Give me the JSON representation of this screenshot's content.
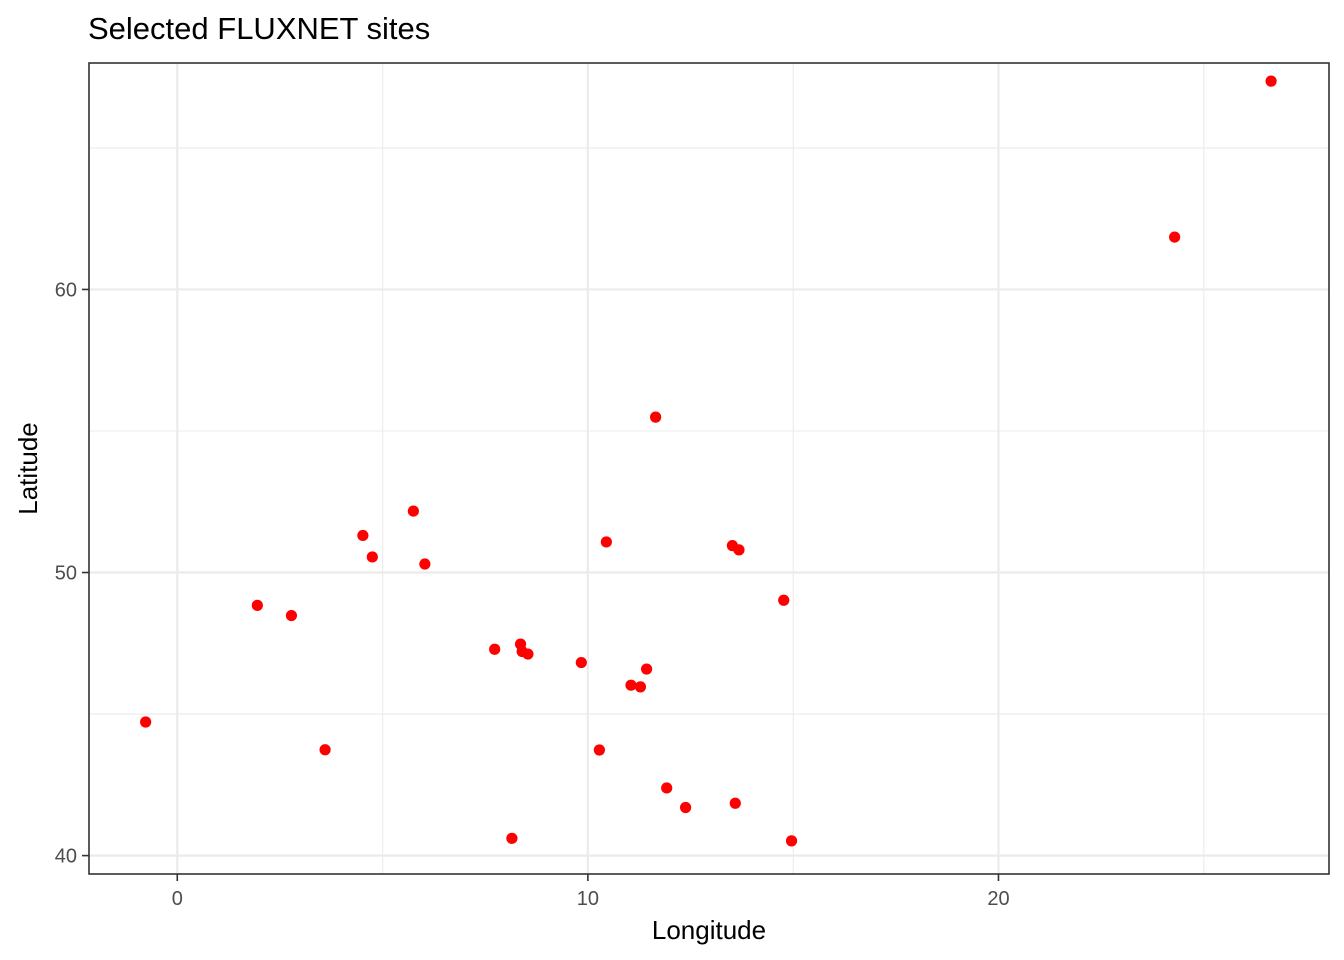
{
  "chart_data": {
    "type": "scatter",
    "title": "Selected FLUXNET sites",
    "xlabel": "Longitude",
    "ylabel": "Latitude",
    "xlim": [
      -2.15,
      28.05
    ],
    "ylim": [
      39.35,
      68.0
    ],
    "x_ticks": [
      0,
      10,
      20
    ],
    "y_ticks": [
      40,
      50,
      60
    ],
    "x_minor": [
      5,
      15,
      25
    ],
    "y_minor": [
      45,
      55,
      65
    ],
    "grid": true,
    "point_color": "#ff0000",
    "points": [
      {
        "x": 26.64,
        "y": 67.36
      },
      {
        "x": 24.29,
        "y": 61.85
      },
      {
        "x": 11.65,
        "y": 55.49
      },
      {
        "x": 5.75,
        "y": 52.17
      },
      {
        "x": 4.52,
        "y": 51.31
      },
      {
        "x": 10.45,
        "y": 51.08
      },
      {
        "x": 13.52,
        "y": 50.95
      },
      {
        "x": 13.68,
        "y": 50.8
      },
      {
        "x": 4.75,
        "y": 50.55
      },
      {
        "x": 6.03,
        "y": 50.3
      },
      {
        "x": 14.77,
        "y": 49.02
      },
      {
        "x": 1.95,
        "y": 48.84
      },
      {
        "x": 2.78,
        "y": 48.48
      },
      {
        "x": 8.36,
        "y": 47.47
      },
      {
        "x": 7.73,
        "y": 47.29
      },
      {
        "x": 8.4,
        "y": 47.21
      },
      {
        "x": 8.54,
        "y": 47.12
      },
      {
        "x": 9.84,
        "y": 46.82
      },
      {
        "x": 11.43,
        "y": 46.59
      },
      {
        "x": 11.05,
        "y": 46.02
      },
      {
        "x": 11.28,
        "y": 45.96
      },
      {
        "x": -0.77,
        "y": 44.72
      },
      {
        "x": 3.6,
        "y": 43.74
      },
      {
        "x": 10.28,
        "y": 43.73
      },
      {
        "x": 11.92,
        "y": 42.39
      },
      {
        "x": 13.59,
        "y": 41.85
      },
      {
        "x": 12.38,
        "y": 41.7
      },
      {
        "x": 8.15,
        "y": 40.61
      },
      {
        "x": 14.96,
        "y": 40.52
      }
    ]
  }
}
